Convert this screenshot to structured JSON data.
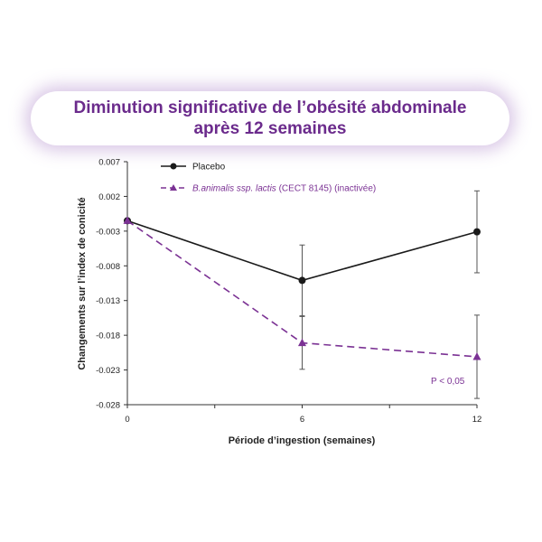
{
  "header": {
    "title_line1": "Diminution significative de l’obésité abdominale",
    "title_line2": "après 12 semaines"
  },
  "chart_data": {
    "type": "line",
    "x": [
      0,
      6,
      12
    ],
    "xticks": [
      "0",
      "6",
      "12"
    ],
    "yticks": [
      "0.007",
      "0.002",
      "-0.003",
      "-0.008",
      "-0.013",
      "-0.018",
      "-0.023",
      "-0.028"
    ],
    "xlim": [
      0,
      12
    ],
    "ylim": [
      -0.028,
      0.007
    ],
    "xlabel": "Période d’ingestion (semaines)",
    "ylabel": "Changements sur l’index de conicité",
    "grid": false,
    "legend_position": "top-left",
    "series": [
      {
        "name": "Placebo",
        "values": [
          -0.0015,
          -0.0101,
          -0.0031
        ],
        "error": [
          0,
          0.0051,
          0.0059
        ],
        "color": "#1a1a1a",
        "marker": "circle",
        "style": "solid"
      },
      {
        "name_italic": "B.animalis ssp. lactis",
        "name_rest": " (CECT 8145) (inactivée)",
        "values": [
          -0.0015,
          -0.0191,
          -0.0211
        ],
        "error": [
          0,
          0.0038,
          0.006
        ],
        "color": "#7b3294",
        "marker": "triangle",
        "style": "dashed"
      }
    ],
    "annotation": "P < 0,05"
  }
}
